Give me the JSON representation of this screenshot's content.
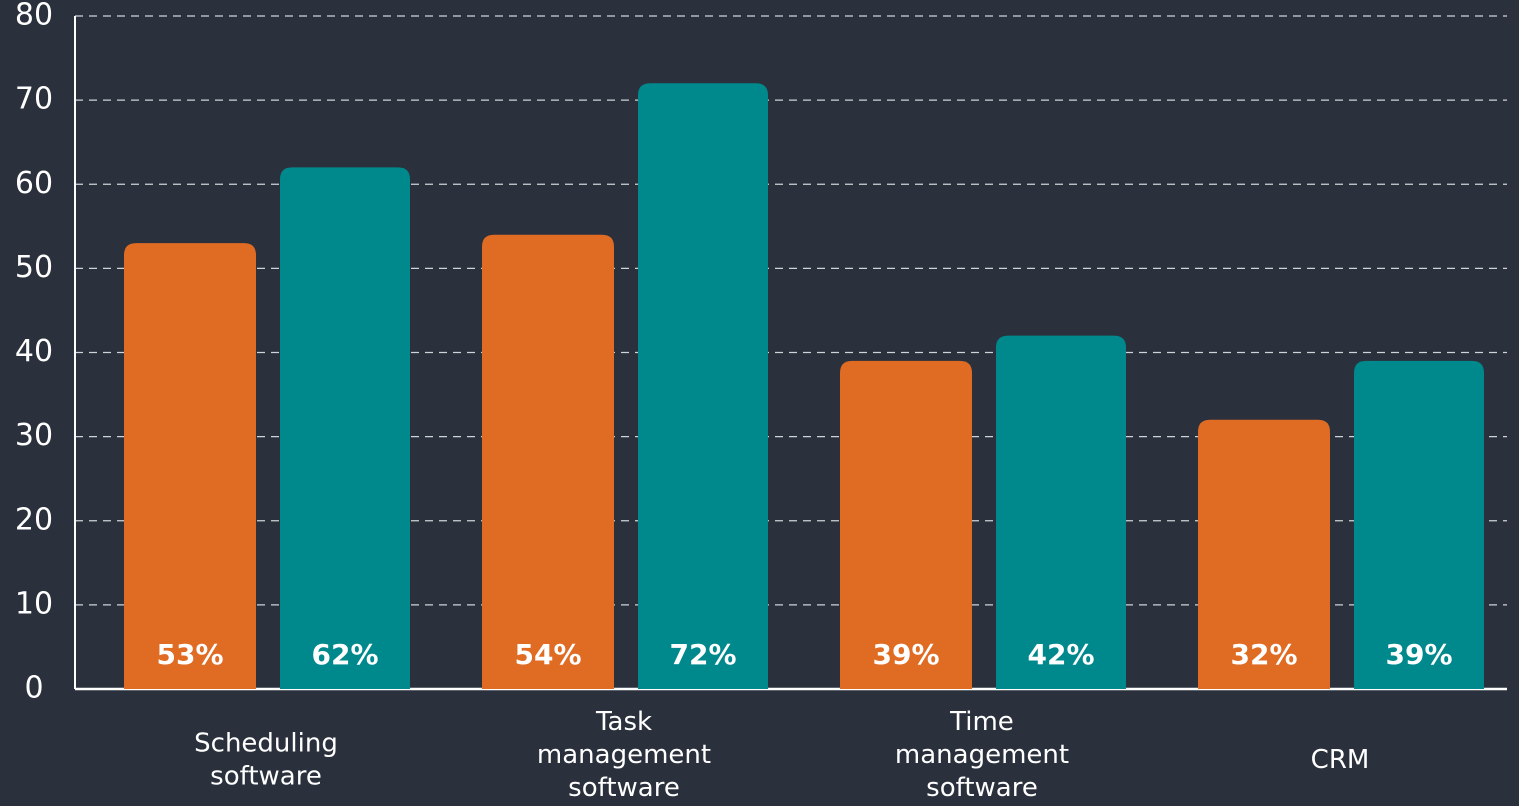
{
  "chart_data": {
    "type": "bar",
    "categories": [
      "Scheduling software",
      "Task management software",
      "Time management software",
      "CRM"
    ],
    "series": [
      {
        "color": "#e06b22",
        "values": [
          53,
          54,
          39,
          32
        ],
        "value_labels": [
          "53%",
          "54%",
          "39%",
          "32%"
        ]
      },
      {
        "color": "#00898d",
        "values": [
          62,
          72,
          42,
          39
        ],
        "value_labels": [
          "62%",
          "72%",
          "42%",
          "39%"
        ]
      }
    ],
    "ylim": [
      0,
      80
    ],
    "yticks": [
      0,
      10,
      20,
      30,
      40,
      50,
      60,
      70,
      80
    ],
    "grid": true
  }
}
